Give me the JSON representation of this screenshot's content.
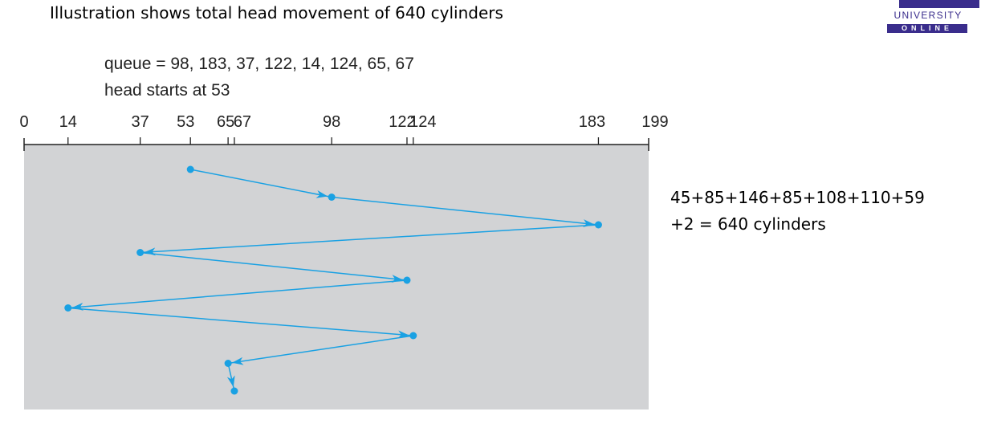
{
  "slide": {
    "title": "Illustration shows total head movement of 640 cylinders",
    "logo": {
      "mark": "FPT",
      "university": "UNIVERSITY",
      "online": "ONLINE"
    }
  },
  "diagram": {
    "queue_text": "queue = 98, 183, 37, 122, 14, 124, 65, 67",
    "head_text": "head starts at 53",
    "ticks": [
      {
        "label": "0",
        "value": 0
      },
      {
        "label": "14",
        "value": 14
      },
      {
        "label": "37",
        "value": 37
      },
      {
        "label": "53",
        "value": 53
      },
      {
        "label": "65",
        "value": 65
      },
      {
        "label": "67",
        "value": 67
      },
      {
        "label": "98",
        "value": 98
      },
      {
        "label": "122",
        "value": 122
      },
      {
        "label": "124",
        "value": 124
      },
      {
        "label": "183",
        "value": 183
      },
      {
        "label": "199",
        "value": 199
      }
    ],
    "path": [
      53,
      98,
      183,
      37,
      122,
      14,
      124,
      65,
      67
    ],
    "colors": {
      "panel": "#d2d3d5",
      "path": "#1aa1e3"
    }
  },
  "calc": {
    "line1": "45+85+146+85+108+110+59",
    "line2": "+2 = 640 cylinders"
  }
}
